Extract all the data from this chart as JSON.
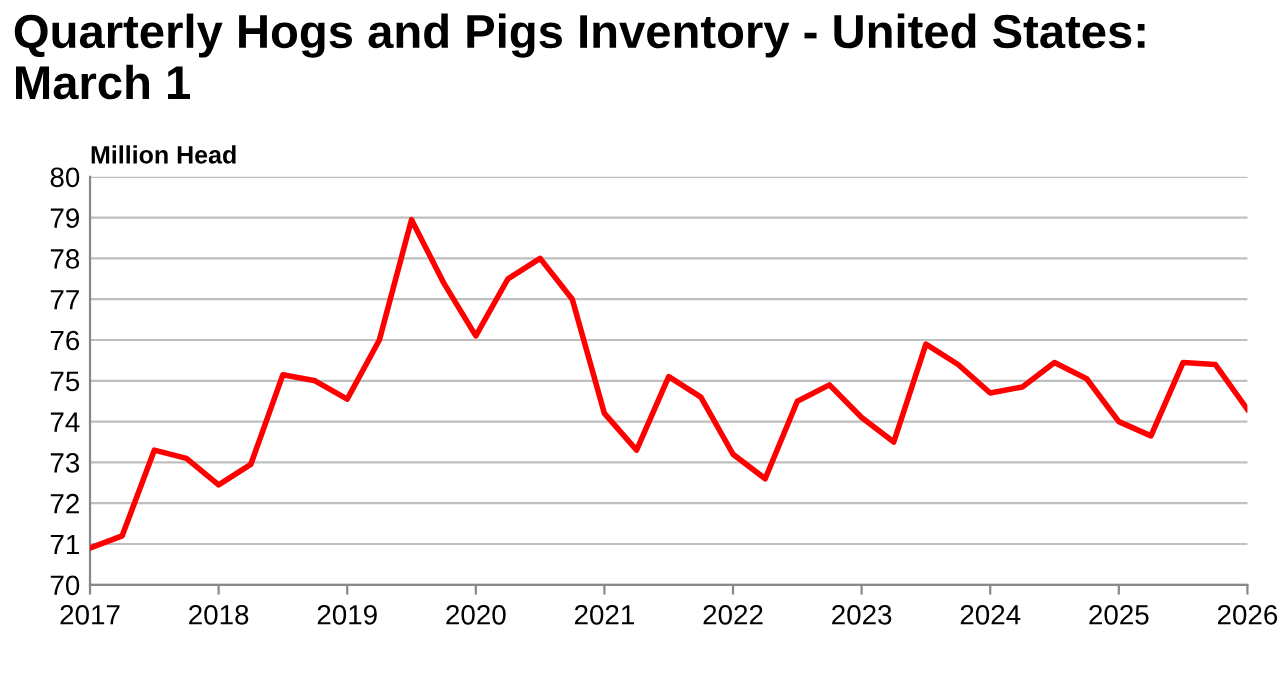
{
  "chart_data": {
    "type": "line",
    "title": "Quarterly Hogs and Pigs Inventory - United States:\nMarch 1",
    "ylabel": "Million Head",
    "x": [
      2017,
      2017.25,
      2017.5,
      2017.75,
      2018,
      2018.25,
      2018.5,
      2018.75,
      2019,
      2019.25,
      2019.5,
      2019.75,
      2020,
      2020.25,
      2020.5,
      2020.75,
      2021,
      2021.25,
      2021.5,
      2021.75,
      2022,
      2022.25,
      2022.5,
      2022.75,
      2023,
      2023.25,
      2023.5,
      2023.75,
      2024,
      2024.25,
      2024.5,
      2024.75,
      2025,
      2025.25,
      2025.5,
      2025.75,
      2026
    ],
    "series": [
      {
        "color": "#ff0000",
        "values": [
          70.9,
          71.2,
          73.3,
          73.1,
          72.45,
          72.95,
          75.15,
          75.0,
          74.55,
          76.0,
          78.95,
          77.4,
          76.1,
          77.5,
          78.0,
          77.0,
          74.2,
          73.3,
          75.1,
          74.6,
          73.2,
          72.6,
          74.5,
          74.9,
          74.1,
          73.5,
          75.9,
          75.4,
          74.7,
          74.85,
          75.45,
          75.05,
          74.0,
          73.65,
          75.45,
          75.4,
          74.3
        ]
      }
    ],
    "xlim": [
      2017,
      2026
    ],
    "xticks": [
      2017,
      2018,
      2019,
      2020,
      2021,
      2022,
      2023,
      2024,
      2025,
      2026
    ],
    "ylim": [
      70,
      80
    ],
    "yticks": [
      70,
      71,
      72,
      73,
      74,
      75,
      76,
      77,
      78,
      79,
      80
    ],
    "grid": "y",
    "legend": false,
    "marker": "none",
    "line_style": "solid"
  }
}
